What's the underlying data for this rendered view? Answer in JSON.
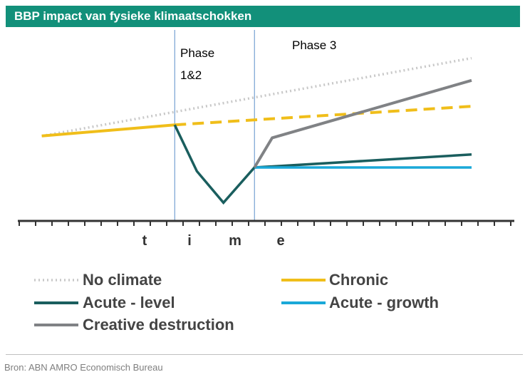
{
  "title": "BBP impact van fysieke klimaatschokken",
  "source": "Bron: ABN AMRO Economisch Bureau",
  "colors": {
    "header": "#12907a",
    "no_climate": "#c8c8c8",
    "chronic": "#f0be1a",
    "acute_level": "#1a5e5e",
    "acute_growth": "#1aa8d8",
    "creative_destruction": "#808285"
  },
  "chart_data": {
    "type": "line",
    "title": "BBP impact van fysieke klimaatschokken",
    "xlabel": "time",
    "x_axis_letters": [
      "t",
      "i",
      "m",
      "e"
    ],
    "phase_labels": [
      "Phase\n1&2",
      "Phase 3"
    ],
    "phase_label_lines": [
      "Phase",
      "1&2"
    ],
    "phase3_label": "Phase 3",
    "xlim": [
      0,
      100
    ],
    "ylim": [
      0,
      100
    ],
    "phase_boundaries": [
      33,
      51
    ],
    "grid": false,
    "legend": "bottom",
    "series": [
      {
        "name": "No climate",
        "style": "dotted",
        "x": [
          3,
          100
        ],
        "y": [
          42,
          84
        ]
      },
      {
        "name": "Chronic",
        "style": "solid",
        "x": [
          3,
          33
        ],
        "y": [
          42,
          48
        ]
      },
      {
        "name": "Chronic",
        "style": "dashed",
        "x": [
          33,
          100
        ],
        "y": [
          48,
          58
        ]
      },
      {
        "name": "Acute - level",
        "style": "solid",
        "x": [
          33,
          38,
          44,
          51,
          100
        ],
        "y": [
          48,
          23,
          6,
          25,
          32
        ]
      },
      {
        "name": "Acute - growth",
        "style": "solid",
        "x": [
          51,
          100
        ],
        "y": [
          25,
          25
        ]
      },
      {
        "name": "Creative destruction",
        "style": "solid",
        "x": [
          51,
          55,
          100
        ],
        "y": [
          25,
          41,
          72
        ]
      }
    ],
    "legend_entries": [
      {
        "name": "No climate",
        "color_key": "no_climate",
        "style": "dotted"
      },
      {
        "name": "Chronic",
        "color_key": "chronic",
        "style": "solid"
      },
      {
        "name": "Acute - level",
        "color_key": "acute_level",
        "style": "solid"
      },
      {
        "name": "Acute - growth",
        "color_key": "acute_growth",
        "style": "solid"
      },
      {
        "name": "Creative destruction",
        "color_key": "creative_destruction",
        "style": "solid"
      }
    ],
    "tick_count": 31
  }
}
